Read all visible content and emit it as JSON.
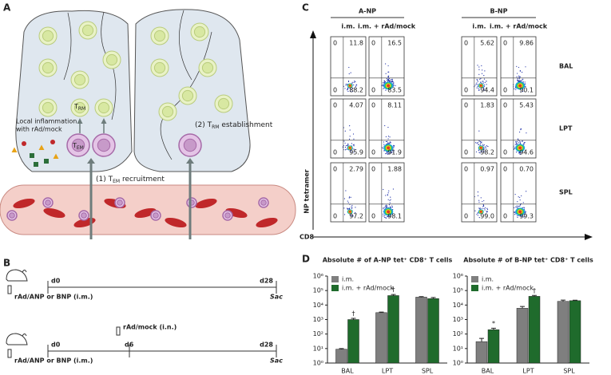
{
  "panel_labels": [
    "A",
    "B",
    "C",
    "D"
  ],
  "diagram": {
    "inflammation": [
      "Local inflammation",
      "with rAd/mock"
    ],
    "cell_rm": {
      "main": "T",
      "sub": "RM"
    },
    "cell_em": {
      "main": "T",
      "sub": "EM"
    },
    "step1": {
      "prefix": "(1) T",
      "sub": "EM",
      "suffix": " recruitment"
    },
    "step2": {
      "prefix": "(2) T",
      "sub": "RM",
      "suffix": " establishment"
    }
  },
  "timeline": [
    {
      "start": "d0",
      "end": "d28",
      "prime": "rAd/ANP or BNP (i.m.)",
      "sac": "Sac"
    },
    {
      "start": "d0",
      "mid": "d6",
      "end": "d28",
      "boost": "rAd/mock (i.n.)",
      "prime": "rAd/ANP or BNP (i.m.)",
      "sac": "Sac"
    }
  ],
  "flow": {
    "groups": [
      {
        "name": "A-NP",
        "columns": [
          "i.m.",
          "i.m. + rAd/mock"
        ]
      },
      {
        "name": "B-NP",
        "columns": [
          "i.m.",
          "i.m. + rAd/mock"
        ]
      }
    ],
    "y_axis": "NP tetramer",
    "x_axis": "CD8",
    "rows": [
      {
        "name": "BAL",
        "plots": [
          {
            "ul": "0",
            "ur": "11.8",
            "ll": "0",
            "lr": "88.2"
          },
          {
            "ul": "0",
            "ur": "16.5",
            "ll": "0",
            "lr": "83.5"
          },
          {
            "ul": "0",
            "ur": "5.62",
            "ll": "0",
            "lr": "94.4"
          },
          {
            "ul": "0",
            "ur": "9.86",
            "ll": "0",
            "lr": "90.1"
          }
        ]
      },
      {
        "name": "LPT",
        "plots": [
          {
            "ul": "0",
            "ur": "4.07",
            "ll": "0",
            "lr": "95.9"
          },
          {
            "ul": "0",
            "ur": "8.11",
            "ll": "0",
            "lr": "91.9"
          },
          {
            "ul": "0",
            "ur": "1.83",
            "ll": "0",
            "lr": "98.2"
          },
          {
            "ul": "0",
            "ur": "5.43",
            "ll": "0",
            "lr": "94.6"
          }
        ]
      },
      {
        "name": "SPL",
        "plots": [
          {
            "ul": "0",
            "ur": "2.79",
            "ll": "0",
            "lr": "97.2"
          },
          {
            "ul": "0",
            "ur": "1.88",
            "ll": "0",
            "lr": "98.1"
          },
          {
            "ul": "0",
            "ur": "0.97",
            "ll": "0",
            "lr": "99.0"
          },
          {
            "ul": "0",
            "ur": "0.70",
            "ll": "0",
            "lr": "99.3"
          }
        ]
      }
    ]
  },
  "chart_data": [
    {
      "type": "bar",
      "title": "Absolute # of A-NP tet⁺ CD8⁺ T cells",
      "categories": [
        "BAL",
        "LPT",
        "SPL"
      ],
      "series": [
        {
          "name": "i.m.",
          "color": "#7f7f7f",
          "values": [
            9,
            3000,
            35000
          ],
          "errors": [
            1,
            300,
            3000
          ],
          "annotations": [
            null,
            null,
            null
          ]
        },
        {
          "name": "i.m. + rAd/mock",
          "color": "#1f6b2c",
          "values": [
            1000,
            45000,
            28000
          ],
          "errors": [
            200,
            8000,
            5000
          ],
          "annotations": [
            "†",
            "†",
            null
          ]
        }
      ],
      "log_scale": true,
      "ylim": [
        1,
        1000000
      ],
      "yticks": [
        {
          "value": 1,
          "label": "10⁰"
        },
        {
          "value": 10,
          "label": "10¹"
        },
        {
          "value": 100,
          "label": "10²"
        },
        {
          "value": 1000,
          "label": "10³"
        },
        {
          "value": 10000,
          "label": "10⁴"
        },
        {
          "value": 100000,
          "label": "10⁵"
        },
        {
          "value": 1000000,
          "label": "10⁶"
        }
      ],
      "legend": "top-left"
    },
    {
      "type": "bar",
      "title": "Absolute # of B-NP tet⁺ CD8⁺ T cells",
      "categories": [
        "BAL",
        "LPT",
        "SPL"
      ],
      "series": [
        {
          "name": "i.m.",
          "color": "#7f7f7f",
          "values": [
            30,
            6000,
            18000
          ],
          "errors": [
            20,
            2000,
            4000
          ],
          "annotations": [
            null,
            null,
            null
          ]
        },
        {
          "name": "i.m. + rAd/mock",
          "color": "#1f6b2c",
          "values": [
            200,
            40000,
            20000
          ],
          "errors": [
            50,
            6000,
            1500
          ],
          "annotations": [
            "*",
            "†",
            null
          ]
        }
      ],
      "log_scale": true,
      "ylim": [
        1,
        1000000
      ],
      "yticks": [
        {
          "value": 1,
          "label": "10⁰"
        },
        {
          "value": 10,
          "label": "10¹"
        },
        {
          "value": 100,
          "label": "10²"
        },
        {
          "value": 1000,
          "label": "10³"
        },
        {
          "value": 10000,
          "label": "10⁴"
        },
        {
          "value": 100000,
          "label": "10⁵"
        },
        {
          "value": 1000000,
          "label": "10⁶"
        }
      ],
      "legend": "top-left"
    }
  ]
}
